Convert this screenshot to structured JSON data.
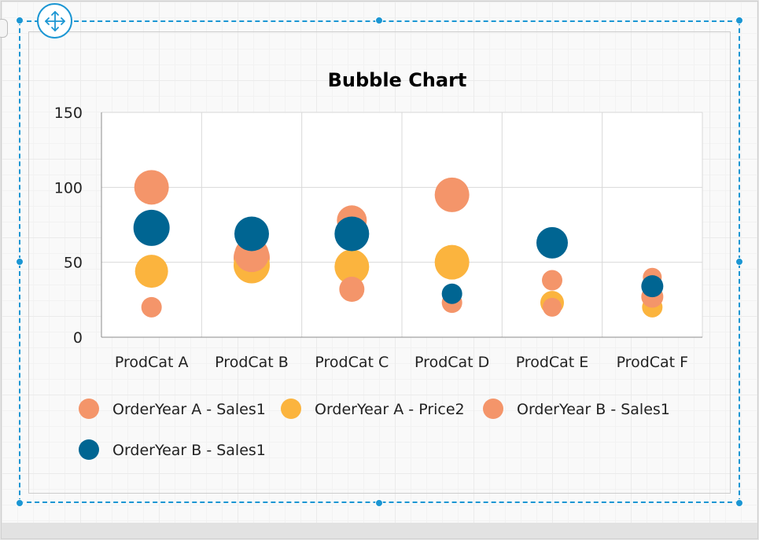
{
  "chart_data": {
    "type": "bubble",
    "title": "Bubble Chart",
    "categories": [
      "ProdCat A",
      "ProdCat B",
      "ProdCat C",
      "ProdCat D",
      "ProdCat E",
      "ProdCat F"
    ],
    "ylim": [
      0,
      150
    ],
    "yticks": [
      0,
      50,
      100,
      150
    ],
    "grid": true,
    "legend_position": "bottom",
    "series": [
      {
        "name": "OrderYear A - Sales1",
        "color": "#F4956A",
        "values": [
          100,
          53,
          78,
          95,
          38,
          40
        ],
        "sizes": [
          22,
          23,
          19,
          22,
          13,
          12
        ]
      },
      {
        "name": "OrderYear A - Price2",
        "color": "#FBB43E",
        "values": [
          44,
          48,
          47,
          50,
          23,
          20
        ],
        "sizes": [
          21,
          23,
          22,
          22,
          15,
          13
        ]
      },
      {
        "name": "OrderYear B - Sales1",
        "color": "#F4956A",
        "values": [
          20,
          55,
          32,
          23,
          20,
          27
        ],
        "sizes": [
          13,
          22,
          16,
          13,
          12,
          14
        ]
      },
      {
        "name": "OrderYear B - Sales1",
        "color": "#006592",
        "values": [
          73,
          69,
          69,
          29,
          63,
          34
        ],
        "sizes": [
          23,
          22,
          22,
          13,
          20,
          14
        ]
      }
    ]
  },
  "designer": {
    "move_icon": "move-arrows-icon",
    "accent_color": "#1B96D3"
  }
}
